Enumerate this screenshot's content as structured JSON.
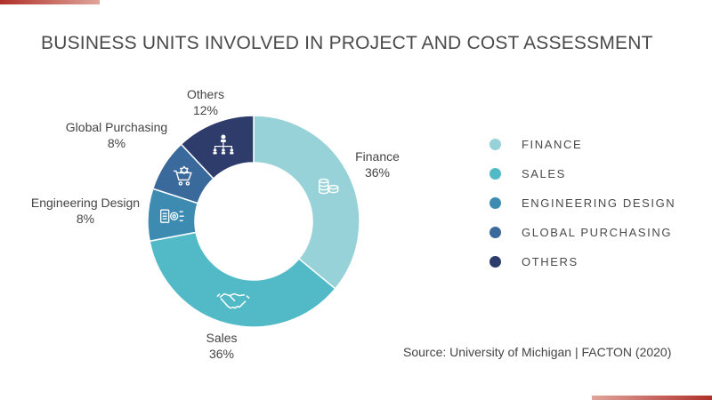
{
  "title": "BUSINESS UNITS INVOLVED IN PROJECT AND COST ASSESSMENT",
  "source": "Source: University of Michigan | FACTON (2020)",
  "chart_data": {
    "type": "pie",
    "variant": "donut",
    "title": "BUSINESS UNITS INVOLVED IN PROJECT AND COST ASSESSMENT",
    "slices": [
      {
        "label": "Finance",
        "value": 36,
        "value_label": "36%",
        "legend": "FINANCE",
        "color": "#96d2d7",
        "icon": "coins-icon"
      },
      {
        "label": "Sales",
        "value": 36,
        "value_label": "36%",
        "legend": "SALES",
        "color": "#52bac7",
        "icon": "handshake-icon"
      },
      {
        "label": "Engineering Design",
        "value": 8,
        "value_label": "8%",
        "legend": "ENGINEERING DESIGN",
        "color": "#3d8bb1",
        "icon": "engineering-icon"
      },
      {
        "label": "Global Purchasing",
        "value": 8,
        "value_label": "8%",
        "legend": "GLOBAL PURCHASING",
        "color": "#3a699b",
        "icon": "shopping-cart-icon"
      },
      {
        "label": "Others",
        "value": 12,
        "value_label": "12%",
        "legend": "OTHERS",
        "color": "#2e3c6b",
        "icon": "org-chart-icon"
      }
    ],
    "legend_position": "right"
  }
}
